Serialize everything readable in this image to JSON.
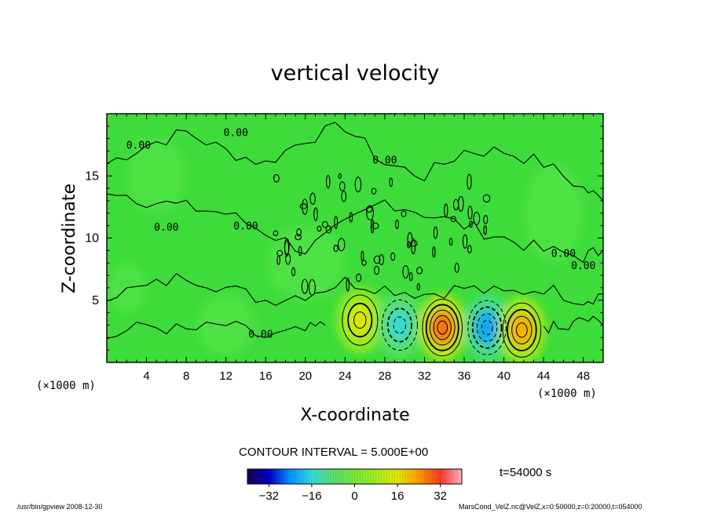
{
  "chart_data": {
    "type": "heatmap",
    "title": "vertical velocity",
    "xlabel": "X-coordinate",
    "ylabel": "Z-coordinate",
    "x_unit_left": "(×1000 m)",
    "x_unit_right": "(×1000 m)",
    "xlim": [
      0,
      50
    ],
    "ylim": [
      0,
      20
    ],
    "x_ticks": [
      4,
      8,
      12,
      16,
      20,
      24,
      28,
      32,
      36,
      40,
      44,
      48
    ],
    "y_ticks": [
      5,
      10,
      15
    ],
    "contour_interval_label": "CONTOUR INTERVAL = 5.000E+00",
    "zero_contour_label": "0.00",
    "colorbar": {
      "range": [
        -40,
        40
      ],
      "ticks": [
        -32,
        -16,
        0,
        16,
        32
      ],
      "colors": [
        "#1a0050",
        "#0000c8",
        "#0096ff",
        "#32dcdc",
        "#5ade70",
        "#7ae83a",
        "#a0f020",
        "#e6e600",
        "#ff9a00",
        "#ff3a28",
        "#ffb4c8"
      ]
    },
    "features": [
      {
        "x": 25.5,
        "z": 3.4,
        "value": 15,
        "kind": "updraft"
      },
      {
        "x": 29.5,
        "z": 3.0,
        "value": -15,
        "kind": "downdraft"
      },
      {
        "x": 33.8,
        "z": 2.8,
        "value": 28,
        "kind": "updraft"
      },
      {
        "x": 38.3,
        "z": 2.8,
        "value": -22,
        "kind": "downdraft"
      },
      {
        "x": 41.8,
        "z": 2.6,
        "value": 22,
        "kind": "updraft"
      }
    ],
    "time_label": "t=54000 s"
  },
  "footer": {
    "left": "/usr/bin/gpview   2008-12-30",
    "right": "MarsCond_VelZ.nc@VelZ,x=0:50000,z=0:20000,t=054000"
  },
  "colors": {
    "background_field": "#3ddc3a",
    "field_light": "#56e44a"
  }
}
